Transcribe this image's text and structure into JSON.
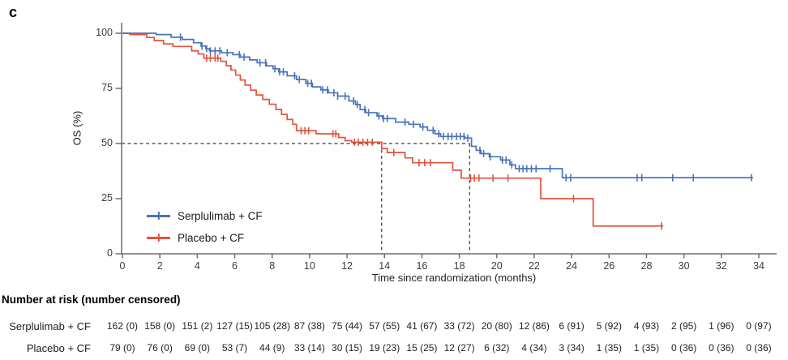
{
  "panel_label": "c",
  "chart_data": {
    "type": "line",
    "subtype": "kaplan-meier-step",
    "title": "",
    "xlabel": "Time since randomization (months)",
    "ylabel": "OS (%)",
    "xlim": [
      0,
      35
    ],
    "ylim": [
      0,
      100
    ],
    "x_ticks": [
      0,
      2,
      4,
      6,
      8,
      10,
      12,
      14,
      16,
      18,
      20,
      22,
      24,
      26,
      28,
      30,
      32,
      34
    ],
    "y_ticks": [
      0,
      25,
      50,
      75,
      100
    ],
    "grid": false,
    "legend_position": "inside-lower-left",
    "reference_lines": {
      "survival_pct": 50,
      "median_months": [
        13.85,
        18.55
      ],
      "style": "dashed",
      "color": "#3a3a3a"
    },
    "series": [
      {
        "name": "Serplulimab + CF",
        "color": "#4a73b8",
        "end_month": 33.7,
        "steps": [
          [
            0,
            100
          ],
          [
            1.8,
            99.4
          ],
          [
            2.6,
            98.2
          ],
          [
            3.2,
            97.2
          ],
          [
            3.8,
            95.7
          ],
          [
            4.2,
            94.2
          ],
          [
            4.45,
            93
          ],
          [
            4.65,
            92
          ],
          [
            5.3,
            91.2
          ],
          [
            5.9,
            90.3
          ],
          [
            6.3,
            89.2
          ],
          [
            6.8,
            87.9
          ],
          [
            7.2,
            86.6
          ],
          [
            7.7,
            85.2
          ],
          [
            8.05,
            83.9
          ],
          [
            8.35,
            82.5
          ],
          [
            8.8,
            80.7
          ],
          [
            9.3,
            79
          ],
          [
            9.8,
            77.3
          ],
          [
            10.15,
            75.7
          ],
          [
            10.6,
            74.3
          ],
          [
            11,
            73
          ],
          [
            11.5,
            71.5
          ],
          [
            12.1,
            69.3
          ],
          [
            12.45,
            67.7
          ],
          [
            12.7,
            65.4
          ],
          [
            13,
            64
          ],
          [
            13.6,
            62.5
          ],
          [
            13.9,
            61.3
          ],
          [
            14.6,
            59.7
          ],
          [
            15.3,
            58.7
          ],
          [
            15.9,
            57.5
          ],
          [
            16.3,
            56
          ],
          [
            16.7,
            54.4
          ],
          [
            17,
            53.2
          ],
          [
            18.3,
            52.5
          ],
          [
            18.65,
            48.7
          ],
          [
            18.9,
            46.9
          ],
          [
            19.15,
            45.4
          ],
          [
            19.6,
            44
          ],
          [
            20.2,
            42.5
          ],
          [
            20.7,
            40.3
          ],
          [
            21,
            38.6
          ],
          [
            23.5,
            34.5
          ]
        ],
        "censor_months": [
          3.1,
          4.25,
          4.5,
          4.7,
          4.95,
          5.2,
          5.6,
          6.25,
          6.5,
          7.35,
          7.65,
          8.15,
          8.4,
          8.6,
          9.2,
          9.45,
          9.9,
          10.1,
          10.7,
          10.95,
          11.3,
          11.5,
          11.9,
          12.35,
          12.55,
          12.95,
          13.15,
          13.7,
          13.95,
          14.15,
          15.1,
          15.55,
          16.05,
          16.6,
          16.9,
          17.15,
          17.4,
          17.6,
          17.85,
          18.05,
          18.25,
          18.45,
          19.1,
          19.3,
          19.65,
          20.3,
          20.5,
          20.8,
          21.2,
          21.4,
          21.6,
          21.85,
          22.1,
          22.85,
          23.7,
          23.95,
          27.5,
          27.75,
          29.4,
          30.5,
          33.6
        ]
      },
      {
        "name": "Placebo + CF",
        "color": "#e2533c",
        "end_month": 28.9,
        "steps": [
          [
            0,
            100
          ],
          [
            0.4,
            99.4
          ],
          [
            1.3,
            98.1
          ],
          [
            1.7,
            96.7
          ],
          [
            2.2,
            95.2
          ],
          [
            2.7,
            94
          ],
          [
            3.7,
            92
          ],
          [
            4.05,
            90.6
          ],
          [
            4.35,
            88.7
          ],
          [
            5.25,
            87.3
          ],
          [
            5.55,
            85.3
          ],
          [
            5.8,
            83.3
          ],
          [
            6.05,
            81
          ],
          [
            6.3,
            78.8
          ],
          [
            6.55,
            76.5
          ],
          [
            6.85,
            74.2
          ],
          [
            7.15,
            72
          ],
          [
            7.5,
            70
          ],
          [
            7.85,
            67.8
          ],
          [
            8.2,
            65.5
          ],
          [
            8.5,
            63.2
          ],
          [
            8.8,
            60.9
          ],
          [
            9.1,
            58.7
          ],
          [
            9.3,
            55.8
          ],
          [
            10.35,
            54.4
          ],
          [
            11.55,
            52.7
          ],
          [
            11.9,
            51.3
          ],
          [
            12.25,
            50.6
          ],
          [
            13.85,
            47.7
          ],
          [
            14.15,
            45.9
          ],
          [
            15.1,
            43.5
          ],
          [
            15.5,
            41.3
          ],
          [
            17.65,
            37.9
          ],
          [
            18.1,
            34.3
          ],
          [
            22.35,
            25
          ],
          [
            25.15,
            12.6
          ]
        ],
        "censor_months": [
          4.5,
          4.7,
          4.95,
          5.1,
          9.55,
          9.75,
          9.95,
          11.25,
          11.4,
          12.4,
          12.6,
          12.85,
          13.1,
          13.35,
          14.5,
          15.85,
          16.15,
          16.45,
          18.6,
          18.8,
          19.05,
          19.8,
          20.6,
          24.1,
          28.8
        ]
      }
    ]
  },
  "risk_table": {
    "header": "Number at risk (number censored)",
    "time_points": [
      0,
      2,
      4,
      6,
      8,
      10,
      12,
      14,
      16,
      18,
      20,
      22,
      24,
      26,
      28,
      30,
      32,
      34
    ],
    "rows": [
      {
        "label": "Serplulimab + CF",
        "values": [
          "162 (0)",
          "158 (0)",
          "151 (2)",
          "127 (15)",
          "105 (28)",
          "87 (38)",
          "75 (44)",
          "57 (55)",
          "41 (67)",
          "33 (72)",
          "20 (80)",
          "12 (86)",
          "6 (91)",
          "5 (92)",
          "4 (93)",
          "2 (95)",
          "1 (96)",
          "0 (97)"
        ]
      },
      {
        "label": "Placebo + CF",
        "values": [
          "79 (0)",
          "76 (0)",
          "69 (0)",
          "53 (7)",
          "44 (9)",
          "33 (14)",
          "30 (15)",
          "19 (23)",
          "15 (25)",
          "12 (27)",
          "6 (32)",
          "4 (34)",
          "3 (34)",
          "1 (35)",
          "1 (35)",
          "0 (36)",
          "0 (36)",
          "0 (36)"
        ]
      }
    ]
  }
}
